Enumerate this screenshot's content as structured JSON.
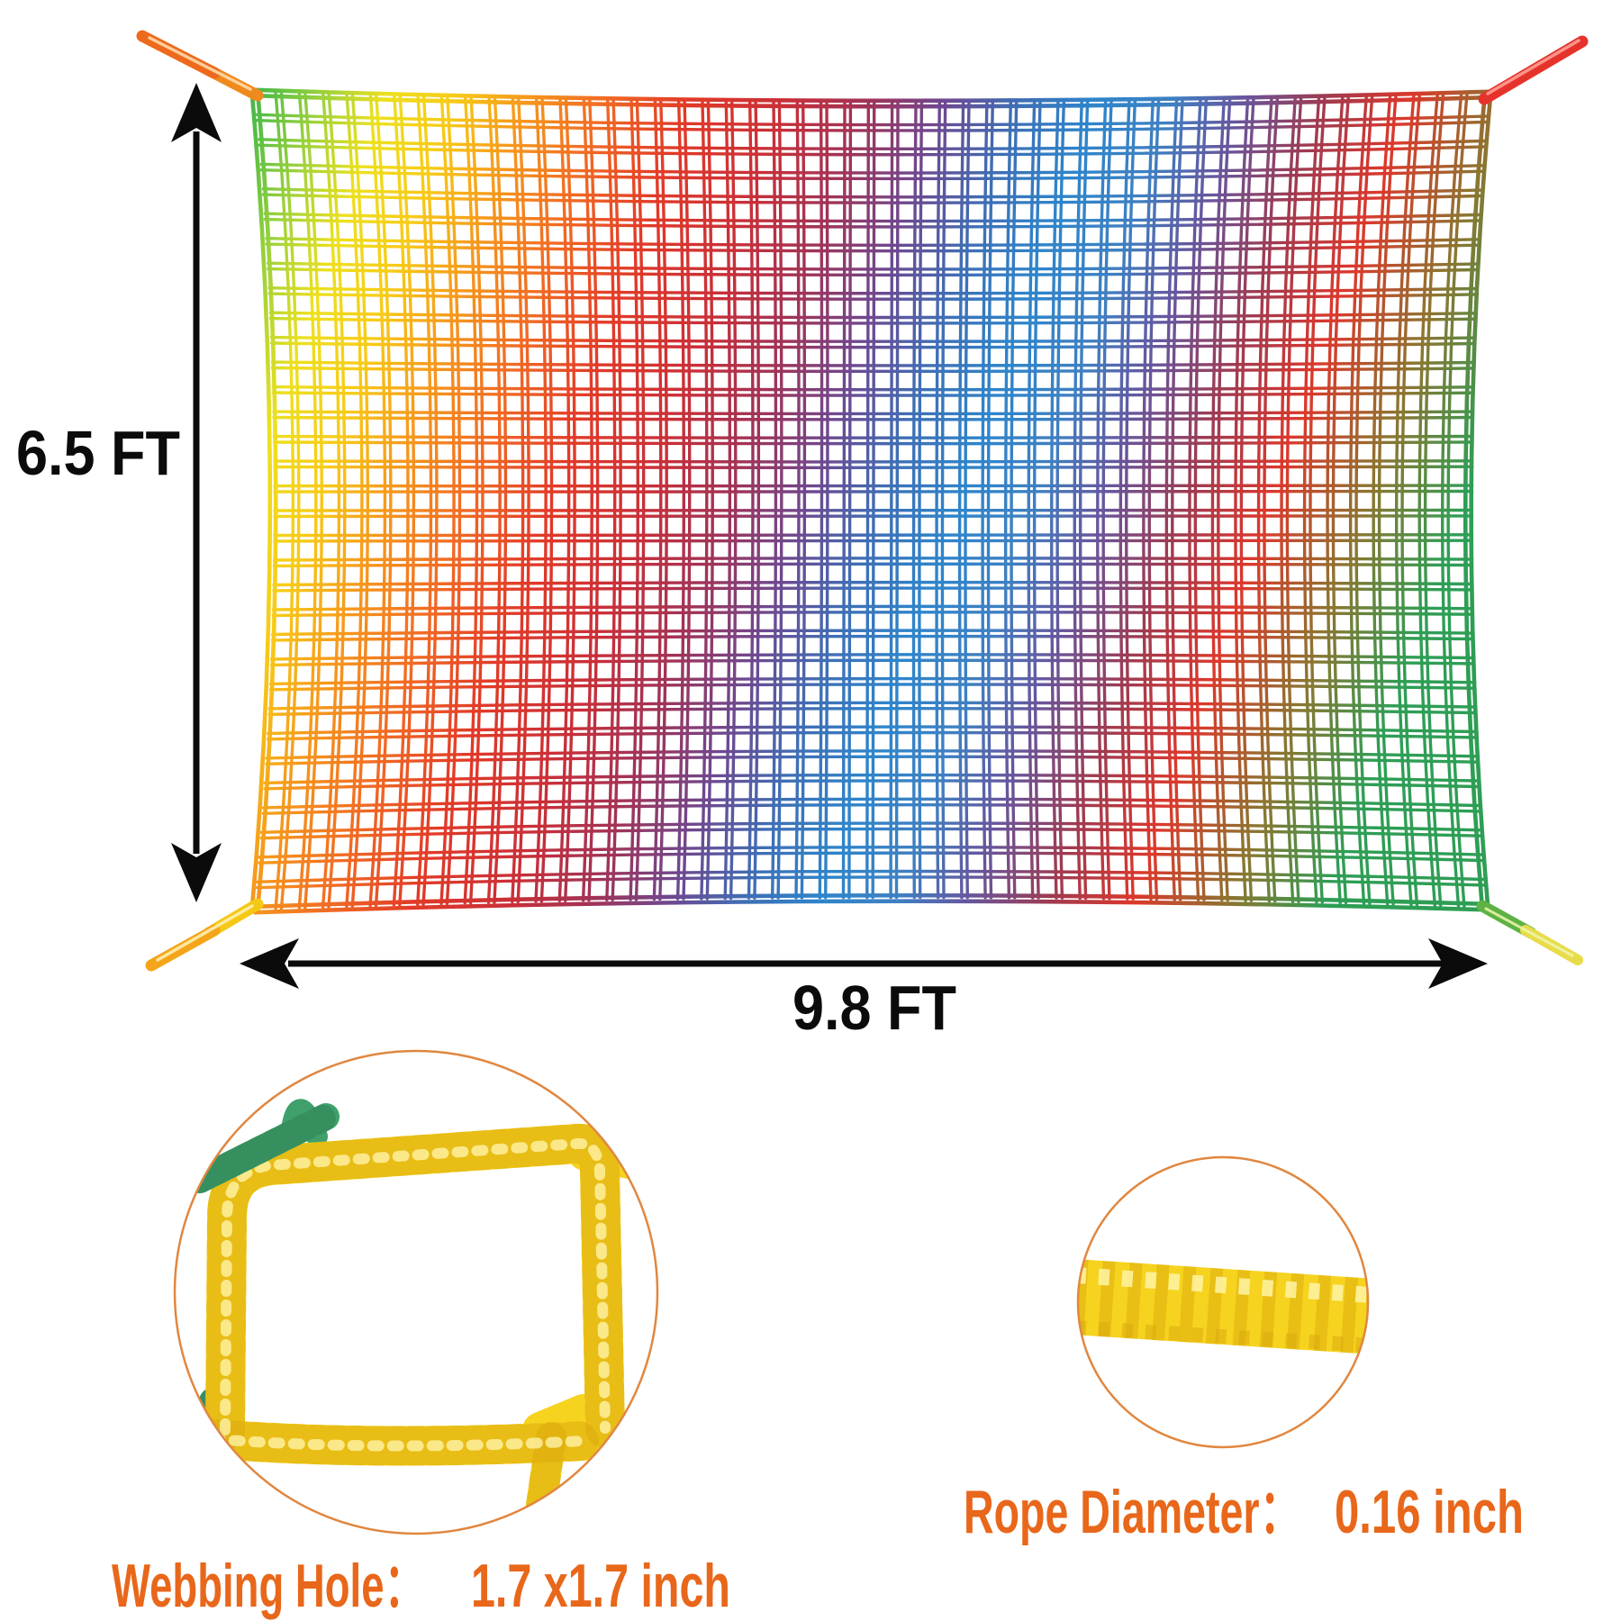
{
  "dimensions": {
    "height_label": "6.5 FT",
    "width_label": "9.8 FT"
  },
  "insets": {
    "webbing_hole": {
      "label": "Webbing Hole：",
      "value": "1.7 x1.7 inch"
    },
    "rope_diameter": {
      "label": "Rope Diameter：",
      "value": "0.16 inch"
    }
  },
  "colors": {
    "accent_text": "#E8671A",
    "dimension_ink": "#0B0B0B",
    "inset_circle_stroke": "#E08740",
    "rope_yellow": "#F6D31E",
    "rope_yellow_shadow": "#D9A70C",
    "rope_yellow_highlight": "#FFF3A6",
    "rope_green": "#3FA06B",
    "rope_green_shadow": "#2E7D53",
    "thread_gray": "#C9C9C9",
    "tie_top_left": "#EF8A1E",
    "tie_top_left_tip": "#ED6A1C",
    "tie_top_right": "#E5332B",
    "tie_bottom_left": "#F4C815",
    "tie_bottom_left_tip": "#F5A51A",
    "tie_bottom_right": "#5EB243",
    "tie_bottom_right_tip": "#E8DC4A",
    "mesh": [
      "#3D9E66",
      "#54BE45",
      "#9ED23B",
      "#EDE01F",
      "#F7CB18",
      "#F69A1C",
      "#F16A24",
      "#E23A28",
      "#C92F38",
      "#A03358",
      "#6E4890",
      "#3E6FB6",
      "#2E85CB",
      "#3E80C2",
      "#66569E",
      "#A03A50",
      "#DC382C",
      "#8C7530",
      "#2E9E55"
    ]
  }
}
